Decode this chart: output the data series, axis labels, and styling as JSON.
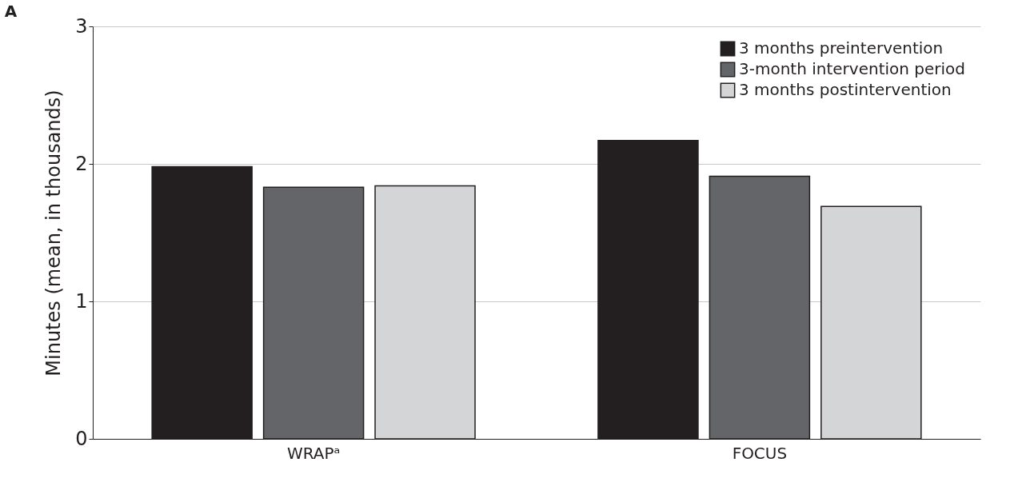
{
  "chart_data": {
    "type": "bar",
    "title": "A",
    "ylabel": "Minutes (mean, in thousands)",
    "categories": [
      "WRAPᵃ",
      "FOCUS"
    ],
    "series": [
      {
        "name": "3 months preintervention",
        "color": "#231f20",
        "values": [
          1.98,
          2.17
        ]
      },
      {
        "name": "3-month intervention period",
        "color": "#646569",
        "values": [
          1.83,
          1.91
        ]
      },
      {
        "name": "3 months postintervention",
        "color": "#d4d5d7",
        "values": [
          1.84,
          1.69
        ]
      }
    ],
    "ylim": [
      0,
      3
    ],
    "yticks": [
      0,
      1,
      2,
      3
    ],
    "grid": "y",
    "legend": "top right"
  }
}
